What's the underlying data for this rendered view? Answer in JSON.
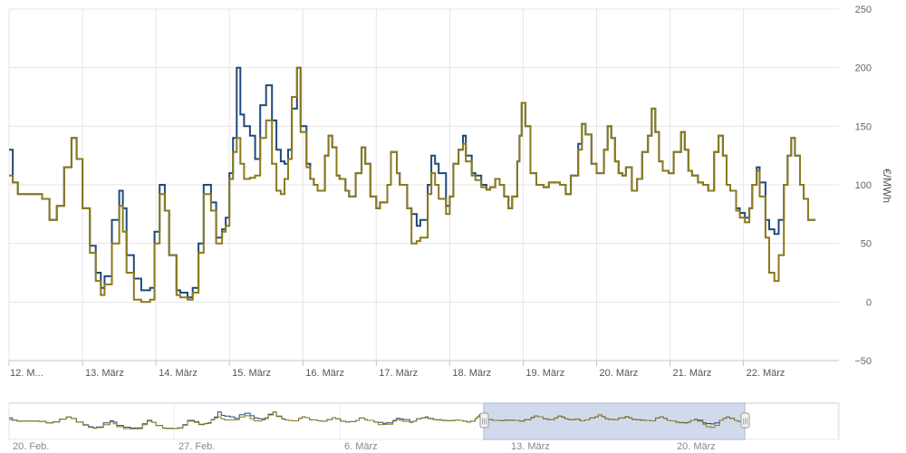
{
  "chart_data": {
    "type": "line",
    "step": true,
    "ylabel": "€/MWh",
    "ylim": [
      -50,
      250
    ],
    "y_ticks": [
      "250",
      "200",
      "150",
      "100",
      "50",
      "0",
      "−50"
    ],
    "x_ticks": [
      "12. M...",
      "13. März",
      "14. März",
      "15. März",
      "16. März",
      "17. März",
      "18. März",
      "19. März",
      "20. März",
      "21. März",
      "22. März"
    ],
    "x_range_days": [
      12,
      23.3
    ],
    "grid": true,
    "legend": "none",
    "series": [
      {
        "color": "#1f4a7a",
        "points": [
          [
            12.0,
            130
          ],
          [
            12.05,
            102
          ],
          [
            12.12,
            92
          ],
          [
            12.45,
            88
          ],
          [
            12.55,
            70
          ],
          [
            12.65,
            82
          ],
          [
            12.75,
            115
          ],
          [
            12.85,
            140
          ],
          [
            12.92,
            122
          ],
          [
            13.0,
            80
          ],
          [
            13.1,
            48
          ],
          [
            13.18,
            25
          ],
          [
            13.25,
            12
          ],
          [
            13.3,
            22
          ],
          [
            13.4,
            70
          ],
          [
            13.5,
            95
          ],
          [
            13.55,
            80
          ],
          [
            13.6,
            40
          ],
          [
            13.7,
            20
          ],
          [
            13.8,
            10
          ],
          [
            13.88,
            10
          ],
          [
            13.92,
            12
          ],
          [
            13.98,
            60
          ],
          [
            14.05,
            100
          ],
          [
            14.12,
            78
          ],
          [
            14.18,
            40
          ],
          [
            14.28,
            10
          ],
          [
            14.33,
            8
          ],
          [
            14.43,
            4
          ],
          [
            14.5,
            12
          ],
          [
            14.58,
            50
          ],
          [
            14.65,
            100
          ],
          [
            14.75,
            85
          ],
          [
            14.82,
            55
          ],
          [
            14.9,
            62
          ],
          [
            14.95,
            72
          ],
          [
            15.0,
            110
          ],
          [
            15.05,
            140
          ],
          [
            15.1,
            200
          ],
          [
            15.15,
            160
          ],
          [
            15.2,
            150
          ],
          [
            15.28,
            142
          ],
          [
            15.35,
            122
          ],
          [
            15.42,
            168
          ],
          [
            15.5,
            185
          ],
          [
            15.58,
            155
          ],
          [
            15.64,
            130
          ],
          [
            15.7,
            120
          ],
          [
            15.75,
            118
          ],
          [
            15.8,
            130
          ],
          [
            15.85,
            165
          ],
          [
            15.92,
            200
          ],
          [
            15.97,
            150
          ],
          [
            16.05,
            118
          ],
          [
            16.1,
            105
          ],
          [
            16.15,
            100
          ],
          [
            16.2,
            95
          ],
          [
            16.3,
            125
          ],
          [
            16.35,
            142
          ],
          [
            16.4,
            132
          ],
          [
            16.46,
            108
          ],
          [
            16.5,
            105
          ],
          [
            16.58,
            95
          ],
          [
            16.63,
            90
          ],
          [
            16.72,
            110
          ],
          [
            16.8,
            132
          ],
          [
            16.85,
            118
          ],
          [
            16.92,
            90
          ],
          [
            17.0,
            80
          ],
          [
            17.05,
            85
          ],
          [
            17.15,
            100
          ],
          [
            17.2,
            128
          ],
          [
            17.28,
            110
          ],
          [
            17.32,
            100
          ],
          [
            17.42,
            80
          ],
          [
            17.48,
            75
          ],
          [
            17.55,
            65
          ],
          [
            17.6,
            70
          ],
          [
            17.7,
            100
          ],
          [
            17.75,
            125
          ],
          [
            17.8,
            118
          ],
          [
            17.85,
            110
          ],
          [
            17.95,
            82
          ],
          [
            18.0,
            90
          ],
          [
            18.05,
            118
          ],
          [
            18.12,
            130
          ],
          [
            18.18,
            142
          ],
          [
            18.22,
            125
          ],
          [
            18.3,
            110
          ],
          [
            18.35,
            108
          ],
          [
            18.43,
            100
          ],
          [
            18.5,
            96
          ],
          [
            18.55,
            98
          ],
          [
            18.62,
            105
          ],
          [
            18.68,
            100
          ],
          [
            18.74,
            90
          ],
          [
            18.8,
            80
          ],
          [
            18.85,
            90
          ],
          [
            18.92,
            120
          ],
          [
            18.95,
            142
          ],
          [
            18.98,
            170
          ],
          [
            19.03,
            150
          ],
          [
            19.1,
            110
          ],
          [
            19.18,
            100
          ],
          [
            19.28,
            98
          ],
          [
            19.35,
            102
          ],
          [
            19.5,
            100
          ],
          [
            19.58,
            92
          ],
          [
            19.65,
            108
          ],
          [
            19.75,
            135
          ],
          [
            19.8,
            152
          ],
          [
            19.85,
            143
          ],
          [
            19.93,
            118
          ],
          [
            20.0,
            110
          ],
          [
            20.1,
            130
          ],
          [
            20.15,
            150
          ],
          [
            20.2,
            140
          ],
          [
            20.25,
            120
          ],
          [
            20.3,
            110
          ],
          [
            20.35,
            108
          ],
          [
            20.4,
            115
          ],
          [
            20.48,
            95
          ],
          [
            20.55,
            105
          ],
          [
            20.62,
            128
          ],
          [
            20.7,
            142
          ],
          [
            20.75,
            165
          ],
          [
            20.8,
            145
          ],
          [
            20.85,
            120
          ],
          [
            20.9,
            112
          ],
          [
            20.98,
            110
          ],
          [
            21.05,
            128
          ],
          [
            21.15,
            145
          ],
          [
            21.2,
            130
          ],
          [
            21.25,
            112
          ],
          [
            21.3,
            108
          ],
          [
            21.38,
            102
          ],
          [
            21.45,
            100
          ],
          [
            21.52,
            95
          ],
          [
            21.6,
            128
          ],
          [
            21.66,
            142
          ],
          [
            21.72,
            125
          ],
          [
            21.77,
            100
          ],
          [
            21.82,
            95
          ],
          [
            21.9,
            80
          ],
          [
            21.95,
            76
          ],
          [
            22.02,
            72
          ],
          [
            22.08,
            80
          ],
          [
            22.12,
            100
          ],
          [
            22.18,
            115
          ],
          [
            22.22,
            102
          ],
          [
            22.3,
            70
          ],
          [
            22.35,
            62
          ],
          [
            22.42,
            58
          ],
          [
            22.48,
            70
          ],
          [
            22.55,
            100
          ],
          [
            22.6,
            125
          ],
          [
            22.65,
            140
          ],
          [
            22.7,
            125
          ],
          [
            22.77,
            100
          ],
          [
            22.82,
            88
          ],
          [
            22.88,
            70
          ]
        ]
      },
      {
        "color": "#8a7a1c",
        "points": [
          [
            12.0,
            108
          ],
          [
            12.05,
            102
          ],
          [
            12.12,
            92
          ],
          [
            12.45,
            88
          ],
          [
            12.55,
            70
          ],
          [
            12.65,
            82
          ],
          [
            12.75,
            115
          ],
          [
            12.85,
            140
          ],
          [
            12.92,
            122
          ],
          [
            13.0,
            80
          ],
          [
            13.1,
            42
          ],
          [
            13.18,
            18
          ],
          [
            13.25,
            6
          ],
          [
            13.3,
            15
          ],
          [
            13.4,
            50
          ],
          [
            13.5,
            82
          ],
          [
            13.55,
            60
          ],
          [
            13.6,
            25
          ],
          [
            13.7,
            2
          ],
          [
            13.8,
            0
          ],
          [
            13.88,
            0
          ],
          [
            13.92,
            2
          ],
          [
            13.98,
            50
          ],
          [
            14.05,
            92
          ],
          [
            14.12,
            78
          ],
          [
            14.18,
            40
          ],
          [
            14.28,
            6
          ],
          [
            14.33,
            4
          ],
          [
            14.43,
            2
          ],
          [
            14.5,
            8
          ],
          [
            14.58,
            42
          ],
          [
            14.65,
            92
          ],
          [
            14.75,
            78
          ],
          [
            14.82,
            50
          ],
          [
            14.9,
            60
          ],
          [
            14.95,
            65
          ],
          [
            15.0,
            105
          ],
          [
            15.05,
            128
          ],
          [
            15.1,
            140
          ],
          [
            15.15,
            118
          ],
          [
            15.2,
            105
          ],
          [
            15.28,
            106
          ],
          [
            15.35,
            108
          ],
          [
            15.42,
            140
          ],
          [
            15.5,
            155
          ],
          [
            15.58,
            118
          ],
          [
            15.64,
            95
          ],
          [
            15.7,
            92
          ],
          [
            15.75,
            105
          ],
          [
            15.8,
            122
          ],
          [
            15.85,
            175
          ],
          [
            15.92,
            200
          ],
          [
            15.97,
            145
          ],
          [
            16.05,
            115
          ],
          [
            16.1,
            105
          ],
          [
            16.15,
            100
          ],
          [
            16.2,
            95
          ],
          [
            16.3,
            125
          ],
          [
            16.35,
            142
          ],
          [
            16.4,
            132
          ],
          [
            16.46,
            108
          ],
          [
            16.5,
            105
          ],
          [
            16.58,
            95
          ],
          [
            16.63,
            90
          ],
          [
            16.72,
            110
          ],
          [
            16.8,
            132
          ],
          [
            16.85,
            118
          ],
          [
            16.92,
            90
          ],
          [
            17.0,
            80
          ],
          [
            17.05,
            85
          ],
          [
            17.15,
            100
          ],
          [
            17.2,
            128
          ],
          [
            17.28,
            110
          ],
          [
            17.32,
            100
          ],
          [
            17.42,
            80
          ],
          [
            17.48,
            50
          ],
          [
            17.55,
            52
          ],
          [
            17.6,
            55
          ],
          [
            17.7,
            92
          ],
          [
            17.75,
            110
          ],
          [
            17.8,
            100
          ],
          [
            17.85,
            88
          ],
          [
            17.95,
            75
          ],
          [
            18.0,
            90
          ],
          [
            18.05,
            118
          ],
          [
            18.12,
            130
          ],
          [
            18.18,
            135
          ],
          [
            18.22,
            120
          ],
          [
            18.3,
            108
          ],
          [
            18.35,
            104
          ],
          [
            18.43,
            98
          ],
          [
            18.5,
            96
          ],
          [
            18.55,
            98
          ],
          [
            18.62,
            105
          ],
          [
            18.68,
            100
          ],
          [
            18.74,
            90
          ],
          [
            18.8,
            80
          ],
          [
            18.85,
            90
          ],
          [
            18.92,
            120
          ],
          [
            18.95,
            142
          ],
          [
            18.98,
            170
          ],
          [
            19.03,
            150
          ],
          [
            19.1,
            110
          ],
          [
            19.18,
            100
          ],
          [
            19.28,
            98
          ],
          [
            19.35,
            102
          ],
          [
            19.5,
            100
          ],
          [
            19.58,
            92
          ],
          [
            19.65,
            108
          ],
          [
            19.75,
            130
          ],
          [
            19.8,
            152
          ],
          [
            19.85,
            143
          ],
          [
            19.93,
            118
          ],
          [
            20.0,
            110
          ],
          [
            20.1,
            130
          ],
          [
            20.15,
            150
          ],
          [
            20.2,
            140
          ],
          [
            20.25,
            120
          ],
          [
            20.3,
            110
          ],
          [
            20.35,
            108
          ],
          [
            20.4,
            115
          ],
          [
            20.48,
            95
          ],
          [
            20.55,
            105
          ],
          [
            20.62,
            128
          ],
          [
            20.7,
            142
          ],
          [
            20.75,
            165
          ],
          [
            20.8,
            145
          ],
          [
            20.85,
            120
          ],
          [
            20.9,
            112
          ],
          [
            20.98,
            110
          ],
          [
            21.05,
            128
          ],
          [
            21.15,
            145
          ],
          [
            21.2,
            130
          ],
          [
            21.25,
            112
          ],
          [
            21.3,
            108
          ],
          [
            21.38,
            102
          ],
          [
            21.45,
            100
          ],
          [
            21.52,
            95
          ],
          [
            21.6,
            128
          ],
          [
            21.66,
            142
          ],
          [
            21.72,
            125
          ],
          [
            21.77,
            100
          ],
          [
            21.82,
            95
          ],
          [
            21.9,
            78
          ],
          [
            21.95,
            72
          ],
          [
            22.02,
            68
          ],
          [
            22.08,
            80
          ],
          [
            22.12,
            100
          ],
          [
            22.18,
            112
          ],
          [
            22.22,
            90
          ],
          [
            22.3,
            55
          ],
          [
            22.35,
            25
          ],
          [
            22.42,
            18
          ],
          [
            22.48,
            40
          ],
          [
            22.55,
            100
          ],
          [
            22.6,
            125
          ],
          [
            22.65,
            140
          ],
          [
            22.7,
            125
          ],
          [
            22.77,
            100
          ],
          [
            22.82,
            88
          ],
          [
            22.88,
            70
          ]
        ]
      }
    ]
  },
  "navigator": {
    "labels": [
      "20. Feb.",
      "27. Feb.",
      "6. März",
      "13. März",
      "20. März"
    ],
    "handle_glyph": "|||"
  }
}
